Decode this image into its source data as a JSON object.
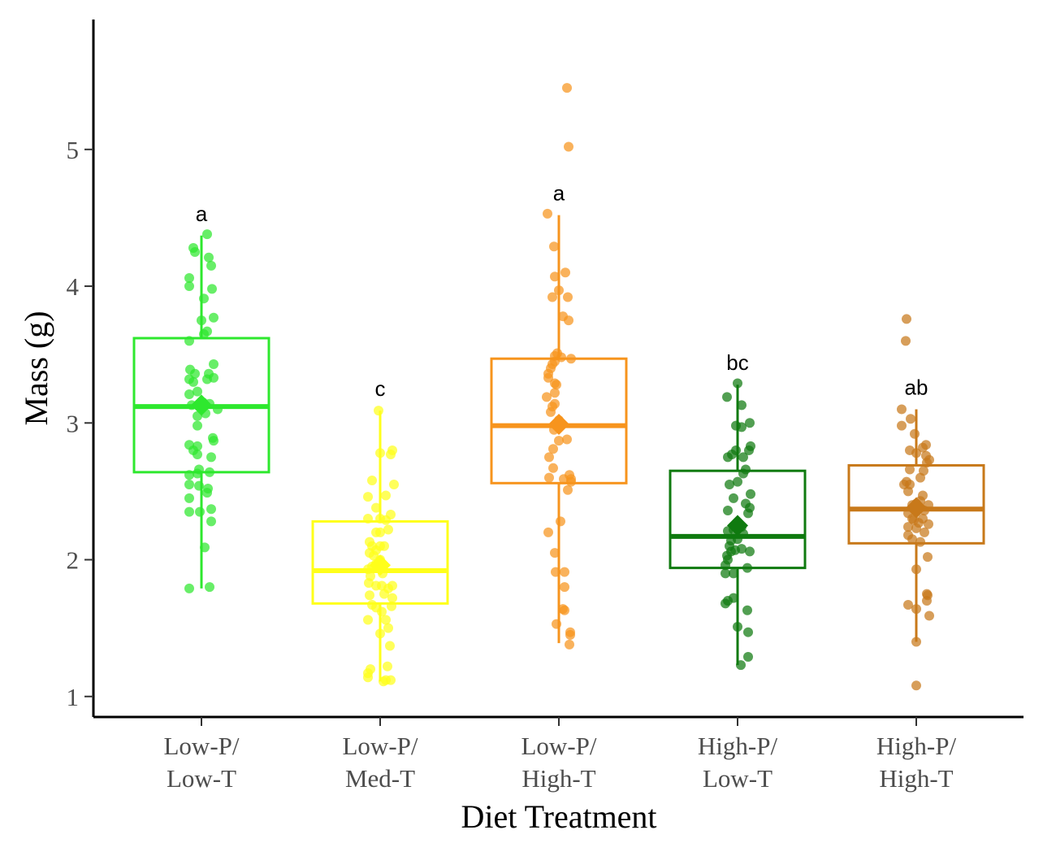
{
  "chart_data": {
    "type": "boxplot",
    "xlabel": "Diet Treatment",
    "ylabel": "Mass (g)",
    "ylim": [
      0.85,
      5.95
    ],
    "yticks": [
      1,
      2,
      3,
      4,
      5
    ],
    "grid": false,
    "legend": "none",
    "groups": [
      {
        "label_lines": [
          "Low-P/",
          "Low-T"
        ],
        "color": "#2ee82e",
        "letter": "a",
        "whisker_low": 1.79,
        "q1": 2.64,
        "median": 3.12,
        "q3": 3.62,
        "whisker_high": 4.37,
        "mean": 3.13,
        "points": [
          [
            -0.15,
            1.79
          ],
          [
            0.1,
            1.8
          ],
          [
            0.04,
            2.09
          ],
          [
            0.12,
            2.28
          ],
          [
            -0.15,
            2.35
          ],
          [
            0.12,
            2.37
          ],
          [
            -0.02,
            2.35
          ],
          [
            -0.15,
            2.45
          ],
          [
            0.07,
            2.49
          ],
          [
            -0.15,
            2.55
          ],
          [
            0.08,
            2.52
          ],
          [
            -0.03,
            2.54
          ],
          [
            -0.05,
            2.63
          ],
          [
            -0.15,
            2.62
          ],
          [
            0.1,
            2.64
          ],
          [
            -0.03,
            2.66
          ],
          [
            0.12,
            2.75
          ],
          [
            -0.05,
            2.77
          ],
          [
            -0.1,
            2.8
          ],
          [
            -0.15,
            2.84
          ],
          [
            -0.05,
            2.83
          ],
          [
            0.15,
            2.87
          ],
          [
            0.14,
            2.89
          ],
          [
            -0.05,
            2.98
          ],
          [
            0.05,
            3.07
          ],
          [
            -0.05,
            3.05
          ],
          [
            0.1,
            3.14
          ],
          [
            -0.12,
            3.13
          ],
          [
            0.02,
            3.15
          ],
          [
            0.2,
            3.1
          ],
          [
            -0.15,
            3.21
          ],
          [
            -0.05,
            3.23
          ],
          [
            -0.15,
            3.32
          ],
          [
            -0.1,
            3.3
          ],
          [
            0.07,
            3.32
          ],
          [
            0.15,
            3.33
          ],
          [
            -0.08,
            3.36
          ],
          [
            0.09,
            3.36
          ],
          [
            -0.14,
            3.39
          ],
          [
            0.15,
            3.43
          ],
          [
            -0.15,
            3.6
          ],
          [
            0.07,
            3.67
          ],
          [
            0.03,
            3.65
          ],
          [
            0.0,
            3.75
          ],
          [
            0.15,
            3.77
          ],
          [
            0.03,
            3.91
          ],
          [
            0.13,
            3.98
          ],
          [
            -0.15,
            4.0
          ],
          [
            -0.15,
            4.06
          ],
          [
            0.09,
            4.21
          ],
          [
            -0.08,
            4.25
          ],
          [
            -0.1,
            4.28
          ],
          [
            0.12,
            4.15
          ],
          [
            0.07,
            4.38
          ]
        ]
      },
      {
        "label_lines": [
          "Low-P/",
          "Med-T"
        ],
        "color": "#ffff1a",
        "letter": "c",
        "whisker_low": 1.11,
        "q1": 1.68,
        "median": 1.92,
        "q3": 2.28,
        "whisker_high": 3.09,
        "mean": 1.96,
        "points": [
          [
            0.07,
            1.12
          ],
          [
            0.04,
            1.11
          ],
          [
            -0.15,
            1.14
          ],
          [
            0.13,
            1.12
          ],
          [
            -0.12,
            1.2
          ],
          [
            0.09,
            1.22
          ],
          [
            -0.15,
            1.17
          ],
          [
            0.12,
            1.37
          ],
          [
            0.0,
            1.46
          ],
          [
            0.1,
            1.5
          ],
          [
            0.07,
            1.56
          ],
          [
            -0.15,
            1.56
          ],
          [
            0.02,
            1.62
          ],
          [
            -0.05,
            1.65
          ],
          [
            -0.1,
            1.67
          ],
          [
            0.14,
            1.66
          ],
          [
            0.15,
            1.72
          ],
          [
            -0.13,
            1.74
          ],
          [
            0.05,
            1.75
          ],
          [
            0.1,
            1.79
          ],
          [
            0.02,
            1.81
          ],
          [
            -0.05,
            1.81
          ],
          [
            0.15,
            1.81
          ],
          [
            -0.14,
            1.83
          ],
          [
            -0.12,
            1.88
          ],
          [
            0.03,
            1.9
          ],
          [
            -0.15,
            1.93
          ],
          [
            -0.1,
            1.95
          ],
          [
            -0.05,
            1.97
          ],
          [
            0.0,
            2.0
          ],
          [
            -0.08,
            2.03
          ],
          [
            -0.13,
            2.05
          ],
          [
            -0.05,
            2.07
          ],
          [
            0.0,
            2.1
          ],
          [
            -0.1,
            2.1
          ],
          [
            0.05,
            2.1
          ],
          [
            -0.13,
            2.13
          ],
          [
            -0.05,
            2.2
          ],
          [
            0.0,
            2.2
          ],
          [
            0.1,
            2.22
          ],
          [
            -0.15,
            2.3
          ],
          [
            0.0,
            2.3
          ],
          [
            0.07,
            2.29
          ],
          [
            0.13,
            2.33
          ],
          [
            -0.05,
            2.38
          ],
          [
            -0.15,
            2.46
          ],
          [
            0.07,
            2.47
          ],
          [
            0.17,
            2.55
          ],
          [
            -0.1,
            2.58
          ],
          [
            0.13,
            2.77
          ],
          [
            0.0,
            2.78
          ],
          [
            0.15,
            2.8
          ],
          [
            -0.02,
            3.09
          ]
        ]
      },
      {
        "label_lines": [
          "Low-P/",
          "High-T"
        ],
        "color": "#f7941d",
        "letter": "a",
        "whisker_low": 1.39,
        "q1": 2.56,
        "median": 2.98,
        "q3": 3.47,
        "whisker_high": 4.52,
        "mean": 2.99,
        "points": [
          [
            0.13,
            1.38
          ],
          [
            0.14,
            1.47
          ],
          [
            0.14,
            1.45
          ],
          [
            -0.03,
            1.53
          ],
          [
            0.07,
            1.63
          ],
          [
            0.05,
            1.64
          ],
          [
            0.07,
            1.8
          ],
          [
            -0.04,
            1.91
          ],
          [
            0.07,
            1.91
          ],
          [
            -0.05,
            2.05
          ],
          [
            -0.13,
            2.2
          ],
          [
            0.02,
            2.28
          ],
          [
            0.11,
            2.51
          ],
          [
            0.15,
            2.57
          ],
          [
            0.15,
            2.59
          ],
          [
            0.06,
            2.59
          ],
          [
            0.13,
            2.62
          ],
          [
            -0.12,
            2.6
          ],
          [
            -0.07,
            2.67
          ],
          [
            -0.12,
            2.75
          ],
          [
            -0.07,
            2.81
          ],
          [
            0.0,
            2.87
          ],
          [
            0.1,
            2.88
          ],
          [
            -0.06,
            2.95
          ],
          [
            -0.04,
            2.99
          ],
          [
            0.0,
            3.02
          ],
          [
            -0.1,
            3.08
          ],
          [
            -0.08,
            3.12
          ],
          [
            -0.05,
            3.14
          ],
          [
            -0.15,
            3.19
          ],
          [
            -0.05,
            3.22
          ],
          [
            -0.03,
            3.28
          ],
          [
            -0.05,
            3.29
          ],
          [
            -0.13,
            3.33
          ],
          [
            -0.13,
            3.36
          ],
          [
            -0.1,
            3.4
          ],
          [
            -0.05,
            3.45
          ],
          [
            -0.08,
            3.43
          ],
          [
            0.03,
            3.48
          ],
          [
            -0.05,
            3.49
          ],
          [
            -0.02,
            3.51
          ],
          [
            0.15,
            3.47
          ],
          [
            0.12,
            3.75
          ],
          [
            0.05,
            3.78
          ],
          [
            -0.08,
            3.92
          ],
          [
            0.11,
            3.92
          ],
          [
            0.0,
            3.97
          ],
          [
            -0.05,
            4.07
          ],
          [
            0.08,
            4.1
          ],
          [
            -0.06,
            4.29
          ],
          [
            -0.14,
            4.53
          ],
          [
            0.12,
            5.02
          ],
          [
            0.1,
            5.45
          ]
        ]
      },
      {
        "label_lines": [
          "High-P/",
          "Low-T"
        ],
        "color": "#0f7a0f",
        "letter": "bc",
        "whisker_low": 1.23,
        "q1": 1.94,
        "median": 2.17,
        "q3": 2.65,
        "whisker_high": 3.28,
        "mean": 2.25,
        "points": [
          [
            0.04,
            1.23
          ],
          [
            0.13,
            1.29
          ],
          [
            0.13,
            1.47
          ],
          [
            0.0,
            1.51
          ],
          [
            0.12,
            1.63
          ],
          [
            -0.15,
            1.68
          ],
          [
            -0.12,
            1.7
          ],
          [
            -0.05,
            1.72
          ],
          [
            -0.15,
            1.9
          ],
          [
            -0.05,
            1.9
          ],
          [
            -0.15,
            1.96
          ],
          [
            0.12,
            1.94
          ],
          [
            -0.12,
            2.0
          ],
          [
            -0.13,
            2.03
          ],
          [
            -0.08,
            2.06
          ],
          [
            -0.03,
            2.07
          ],
          [
            0.05,
            2.08
          ],
          [
            0.15,
            2.06
          ],
          [
            -0.1,
            2.1
          ],
          [
            -0.08,
            2.14
          ],
          [
            0.0,
            2.15
          ],
          [
            0.07,
            2.19
          ],
          [
            -0.12,
            2.21
          ],
          [
            -0.05,
            2.22
          ],
          [
            0.0,
            2.24
          ],
          [
            0.05,
            2.24
          ],
          [
            0.13,
            2.34
          ],
          [
            -0.12,
            2.36
          ],
          [
            0.15,
            2.38
          ],
          [
            0.1,
            2.41
          ],
          [
            -0.05,
            2.45
          ],
          [
            0.16,
            2.48
          ],
          [
            -0.1,
            2.55
          ],
          [
            0.0,
            2.57
          ],
          [
            0.1,
            2.66
          ],
          [
            0.07,
            2.63
          ],
          [
            -0.12,
            2.75
          ],
          [
            -0.07,
            2.77
          ],
          [
            -0.02,
            2.8
          ],
          [
            0.07,
            2.75
          ],
          [
            0.14,
            2.8
          ],
          [
            0.16,
            2.83
          ],
          [
            -0.02,
            2.98
          ],
          [
            0.05,
            2.97
          ],
          [
            0.15,
            3.0
          ],
          [
            0.05,
            3.13
          ],
          [
            -0.13,
            3.19
          ],
          [
            0.0,
            3.29
          ]
        ]
      },
      {
        "label_lines": [
          "High-P/",
          "High-T"
        ],
        "color": "#c8791a",
        "letter": "ab",
        "whisker_low": 1.4,
        "q1": 2.12,
        "median": 2.37,
        "q3": 2.69,
        "whisker_high": 3.1,
        "mean": 2.38,
        "points": [
          [
            0.0,
            1.08
          ],
          [
            0.0,
            1.4
          ],
          [
            0.16,
            1.59
          ],
          [
            0.0,
            1.64
          ],
          [
            -0.1,
            1.67
          ],
          [
            0.13,
            1.7
          ],
          [
            0.14,
            1.74
          ],
          [
            0.13,
            1.75
          ],
          [
            0.0,
            1.93
          ],
          [
            0.14,
            2.02
          ],
          [
            0.05,
            2.13
          ],
          [
            -0.05,
            2.15
          ],
          [
            -0.1,
            2.18
          ],
          [
            0.1,
            2.2
          ],
          [
            0.0,
            2.23
          ],
          [
            -0.1,
            2.24
          ],
          [
            0.03,
            2.27
          ],
          [
            0.15,
            2.26
          ],
          [
            -0.03,
            2.29
          ],
          [
            -0.05,
            2.3
          ],
          [
            0.08,
            2.3
          ],
          [
            -0.1,
            2.34
          ],
          [
            0.1,
            2.36
          ],
          [
            0.15,
            2.4
          ],
          [
            -0.05,
            2.4
          ],
          [
            0.0,
            2.41
          ],
          [
            0.05,
            2.43
          ],
          [
            0.08,
            2.47
          ],
          [
            -0.1,
            2.5
          ],
          [
            -0.15,
            2.55
          ],
          [
            -0.08,
            2.55
          ],
          [
            -0.12,
            2.57
          ],
          [
            0.05,
            2.6
          ],
          [
            0.09,
            2.65
          ],
          [
            -0.08,
            2.66
          ],
          [
            0.13,
            2.71
          ],
          [
            0.16,
            2.73
          ],
          [
            0.12,
            2.76
          ],
          [
            0.0,
            2.78
          ],
          [
            -0.08,
            2.8
          ],
          [
            0.08,
            2.82
          ],
          [
            0.12,
            2.84
          ],
          [
            -0.02,
            2.92
          ],
          [
            -0.18,
            2.98
          ],
          [
            -0.07,
            3.03
          ],
          [
            -0.18,
            3.1
          ],
          [
            -0.13,
            3.6
          ],
          [
            -0.12,
            3.76
          ]
        ]
      }
    ]
  }
}
